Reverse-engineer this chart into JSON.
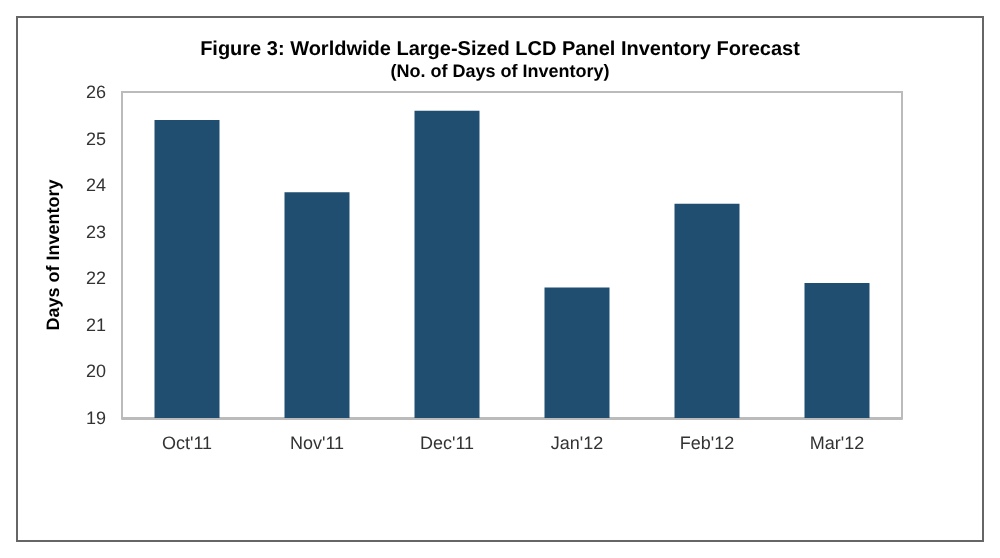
{
  "chart_data": {
    "type": "bar",
    "title": "Figure 3: Worldwide Large-Sized LCD Panel Inventory Forecast",
    "subtitle": "(No. of Days of Inventory)",
    "ylabel": "Days of Inventory",
    "categories": [
      "Oct'11",
      "Nov'11",
      "Dec'11",
      "Jan'12",
      "Feb'12",
      "Mar'12"
    ],
    "values": [
      25.4,
      23.85,
      25.6,
      21.8,
      23.6,
      21.9
    ],
    "color": "#1f4e70",
    "ylim": [
      19,
      26
    ],
    "yticks": [
      19,
      20,
      21,
      22,
      23,
      24,
      25,
      26
    ],
    "grid": false
  }
}
